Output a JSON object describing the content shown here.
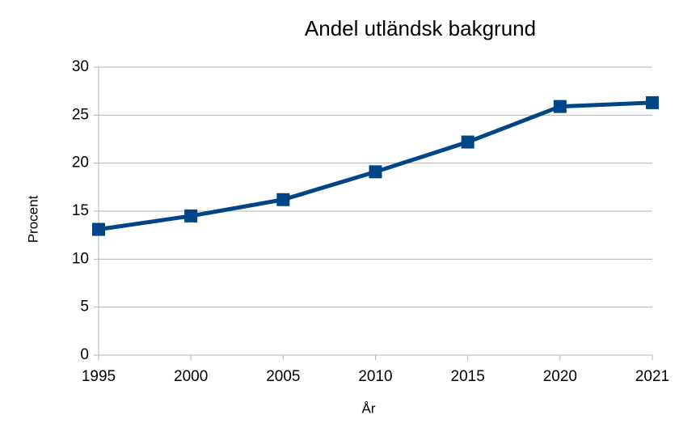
{
  "chart_data": {
    "type": "line",
    "title": "Andel utländsk bakgrund",
    "x_label": "År",
    "y_label": "Procent",
    "categories": [
      "1995",
      "2000",
      "2005",
      "2010",
      "2015",
      "2020",
      "2021"
    ],
    "series": [
      {
        "name": "Andel utländsk bakgrund",
        "color": "#004586",
        "values": [
          13.1,
          14.5,
          16.2,
          19.1,
          22.2,
          25.9,
          26.3
        ]
      }
    ],
    "ylim": [
      0,
      30
    ],
    "yticks": [
      0,
      5,
      10,
      15,
      20,
      25,
      30
    ],
    "grid": true
  }
}
